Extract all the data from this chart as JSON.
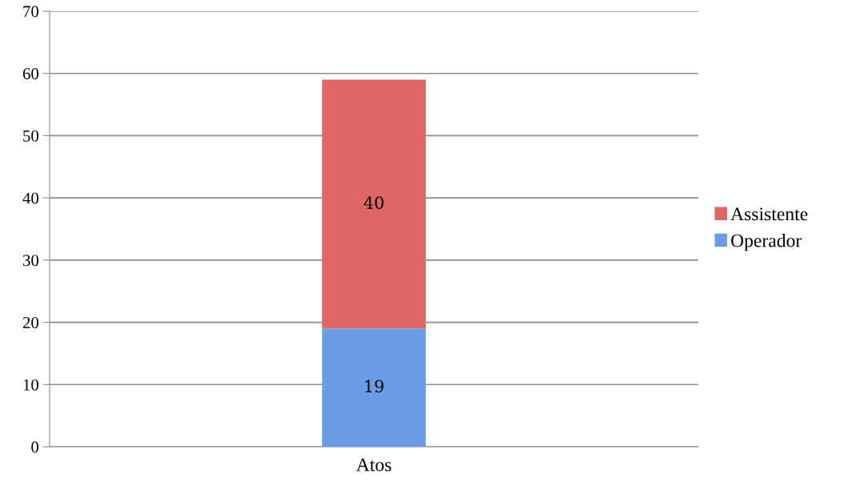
{
  "chart_data": {
    "type": "bar",
    "stacked": true,
    "categories": [
      "Atos"
    ],
    "series": [
      {
        "name": "Operador",
        "color": "#6b9de6",
        "values": [
          19
        ]
      },
      {
        "name": "Assistente",
        "color": "#e06666",
        "values": [
          40
        ]
      }
    ],
    "ylim": [
      0,
      70
    ],
    "yticks": [
      0,
      10,
      20,
      30,
      40,
      50,
      60,
      70
    ],
    "grid": "y",
    "legend": "right",
    "data_labels": true
  }
}
